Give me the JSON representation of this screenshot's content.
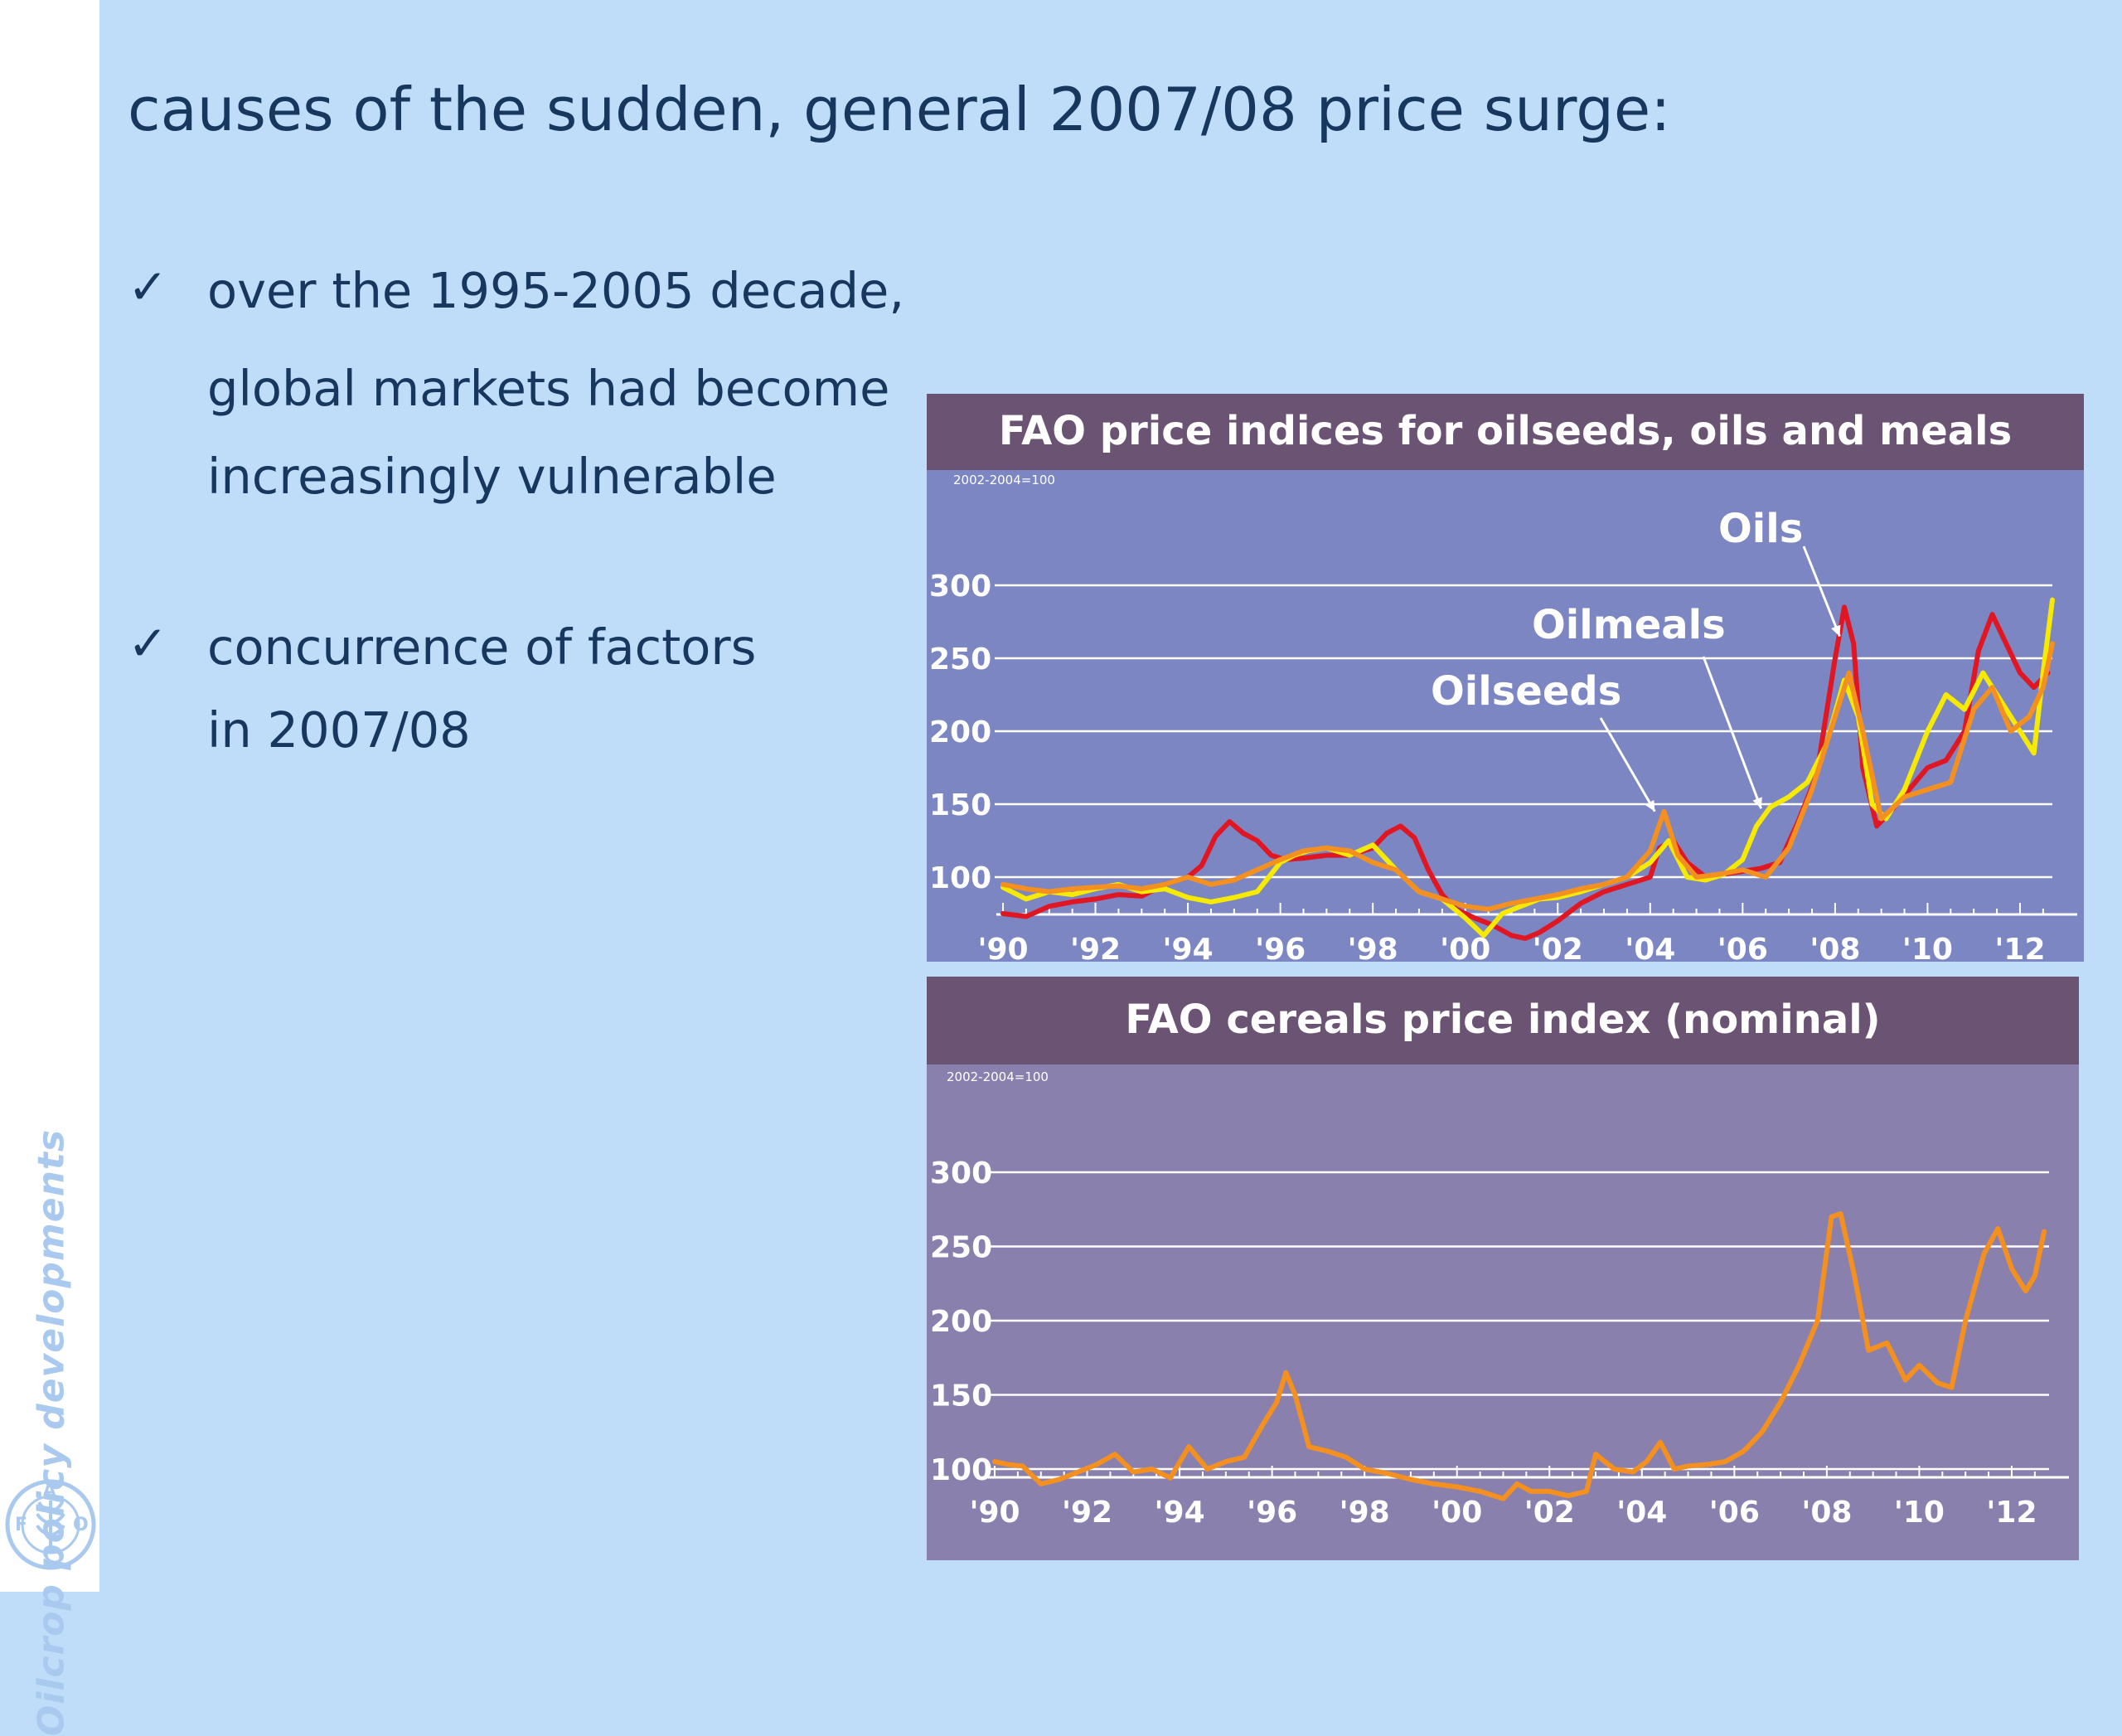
{
  "sidebar": {
    "label": "Oilcrop policy developments",
    "logo_letters": [
      "F",
      "A",
      "O"
    ]
  },
  "slide": {
    "title": "causes of the sudden, general 2007/08 price surge:",
    "bullets": [
      {
        "check": "✓",
        "lines": [
          "over the 1995-2005 decade,",
          "global markets had become",
          "increasingly vulnerable"
        ]
      },
      {
        "check": "✓",
        "lines": [
          "concurrence of factors",
          "in 2007/08"
        ]
      }
    ]
  },
  "colors": {
    "panel_header": "#6b5373",
    "panel_bg_top": "#7b86c2",
    "panel_bg_bottom": "#8a80ae",
    "oils": "#e01623",
    "oilmeals": "#f5ea00",
    "oilseeds": "#f39020",
    "cereals": "#f39020",
    "grid": "#ffffff"
  },
  "chart_data": [
    {
      "type": "line",
      "title": "FAO price indices for oilseeds, oils and meals",
      "subtitle": "2002-2004=100",
      "xlabel": "",
      "ylabel": "",
      "x_ticks": [
        "'90",
        "'92",
        "'94",
        "'96",
        "'98",
        "'00",
        "'02",
        "'04",
        "'06",
        "'08",
        "'10",
        "'12"
      ],
      "x_tick_values": [
        1990,
        1992,
        1994,
        1996,
        1998,
        2000,
        2002,
        2004,
        2006,
        2008,
        2010,
        2012
      ],
      "y_ticks": [
        100,
        150,
        200,
        250,
        300
      ],
      "xlim": [
        1990,
        2012.7
      ],
      "ylim": [
        50,
        300
      ],
      "grid": true,
      "annotations": [
        {
          "text": "Oils",
          "series": "Oils",
          "at": [
            2008.1,
            265
          ]
        },
        {
          "text": "Oilmeals",
          "series": "Oilmeals",
          "at": [
            2006.4,
            147
          ]
        },
        {
          "text": "Oilseeds",
          "series": "Oilseeds",
          "at": [
            2004.1,
            145
          ]
        }
      ],
      "series": [
        {
          "name": "Oils",
          "color": "#e01623",
          "x": [
            1990,
            1990.5,
            1991,
            1991.5,
            1992,
            1992.5,
            1993,
            1993.5,
            1994,
            1994.3,
            1994.6,
            1994.9,
            1995.2,
            1995.5,
            1995.8,
            1996.1,
            1996.5,
            1997,
            1997.5,
            1998,
            1998.3,
            1998.6,
            1998.9,
            1999.2,
            1999.5,
            1999.8,
            2000.2,
            2000.6,
            2001,
            2001.3,
            2001.6,
            2002,
            2002.5,
            2003,
            2003.5,
            2004,
            2004.2,
            2004.5,
            2004.8,
            2005.2,
            2005.6,
            2006,
            2006.4,
            2006.8,
            2007.2,
            2007.6,
            2008,
            2008.2,
            2008.4,
            2008.6,
            2008.9,
            2009.2,
            2009.6,
            2010,
            2010.4,
            2010.8,
            2011.1,
            2011.4,
            2011.7,
            2012,
            2012.3,
            2012.6
          ],
          "y": [
            75,
            73,
            80,
            83,
            85,
            88,
            87,
            95,
            100,
            108,
            128,
            138,
            130,
            125,
            115,
            112,
            113,
            115,
            115,
            120,
            130,
            135,
            127,
            105,
            88,
            78,
            72,
            67,
            60,
            58,
            62,
            70,
            82,
            90,
            95,
            100,
            120,
            125,
            110,
            100,
            102,
            104,
            106,
            110,
            138,
            170,
            250,
            285,
            260,
            175,
            135,
            145,
            160,
            175,
            180,
            200,
            255,
            280,
            260,
            240,
            230,
            240
          ]
        },
        {
          "name": "Oilmeals",
          "color": "#f5ea00",
          "x": [
            1990,
            1990.5,
            1991,
            1991.5,
            1992,
            1992.5,
            1993,
            1993.5,
            1994,
            1994.5,
            1995,
            1995.5,
            1996,
            1996.3,
            1996.6,
            1997,
            1997.5,
            1998,
            1998.5,
            1999,
            1999.5,
            2000,
            2000.4,
            2000.8,
            2001.2,
            2001.6,
            2002,
            2002.5,
            2003,
            2003.5,
            2004,
            2004.4,
            2004.8,
            2005.2,
            2005.6,
            2006,
            2006.3,
            2006.6,
            2007,
            2007.4,
            2007.8,
            2008.2,
            2008.5,
            2008.8,
            2009.1,
            2009.5,
            2010,
            2010.4,
            2010.8,
            2011.2,
            2011.6,
            2012,
            2012.3,
            2012.5,
            2012.7
          ],
          "y": [
            93,
            85,
            90,
            88,
            92,
            95,
            90,
            92,
            86,
            83,
            86,
            90,
            110,
            115,
            118,
            120,
            115,
            122,
            105,
            90,
            85,
            72,
            60,
            75,
            80,
            85,
            86,
            90,
            95,
            100,
            110,
            125,
            100,
            98,
            102,
            112,
            135,
            148,
            155,
            165,
            190,
            235,
            210,
            150,
            140,
            160,
            200,
            225,
            215,
            240,
            220,
            200,
            185,
            240,
            290
          ]
        },
        {
          "name": "Oilseeds",
          "color": "#f39020",
          "x": [
            1990,
            1990.5,
            1991,
            1991.5,
            1992,
            1992.5,
            1993,
            1993.5,
            1994,
            1994.5,
            1995,
            1995.5,
            1996,
            1996.5,
            1997,
            1997.5,
            1998,
            1998.5,
            1999,
            1999.5,
            2000,
            2000.5,
            2001,
            2001.5,
            2002,
            2002.5,
            2003,
            2003.5,
            2004,
            2004.3,
            2004.6,
            2005,
            2005.5,
            2006,
            2006.5,
            2007,
            2007.5,
            2008,
            2008.3,
            2008.6,
            2009,
            2009.5,
            2010,
            2010.5,
            2011,
            2011.4,
            2011.8,
            2012.2,
            2012.5,
            2012.7
          ],
          "y": [
            95,
            92,
            90,
            92,
            93,
            94,
            92,
            95,
            100,
            95,
            98,
            105,
            112,
            118,
            120,
            118,
            110,
            105,
            90,
            85,
            80,
            78,
            82,
            85,
            88,
            92,
            95,
            100,
            118,
            145,
            115,
            100,
            102,
            105,
            100,
            120,
            160,
            210,
            240,
            200,
            140,
            155,
            160,
            165,
            215,
            230,
            200,
            210,
            230,
            260
          ]
        }
      ]
    },
    {
      "type": "line",
      "title": "FAO cereals price index (nominal)",
      "subtitle": "2002-2004=100",
      "xlabel": "",
      "ylabel": "",
      "x_ticks": [
        "'90",
        "'92",
        "'94",
        "'96",
        "'98",
        "'00",
        "'02",
        "'04",
        "'06",
        "'08",
        "'10",
        "'12"
      ],
      "x_tick_values": [
        1990,
        1992,
        1994,
        1996,
        1998,
        2000,
        2002,
        2004,
        2006,
        2008,
        2010,
        2012
      ],
      "y_ticks": [
        100,
        150,
        200,
        250,
        300
      ],
      "xlim": [
        1990,
        2012.7
      ],
      "ylim": [
        50,
        300
      ],
      "grid": true,
      "series": [
        {
          "name": "",
          "color": "#f39020",
          "x": [
            1990,
            1990.3,
            1990.6,
            1991,
            1991.4,
            1991.8,
            1992.2,
            1992.6,
            1993,
            1993.4,
            1993.8,
            1994.2,
            1994.6,
            1995,
            1995.4,
            1995.8,
            1996.1,
            1996.3,
            1996.5,
            1996.8,
            1997.2,
            1997.6,
            1998,
            1998.5,
            1999,
            1999.5,
            2000,
            2000.5,
            2001,
            2001.3,
            2001.6,
            2002,
            2002.4,
            2002.8,
            2003,
            2003.4,
            2003.8,
            2004.1,
            2004.4,
            2004.7,
            2005,
            2005.4,
            2005.8,
            2006.2,
            2006.6,
            2007,
            2007.4,
            2007.8,
            2008.1,
            2008.3,
            2008.6,
            2008.9,
            2009.3,
            2009.7,
            2010,
            2010.4,
            2010.7,
            2011,
            2011.4,
            2011.7,
            2012,
            2012.3,
            2012.5,
            2012.7
          ],
          "y": [
            105,
            103,
            102,
            90,
            93,
            98,
            103,
            110,
            98,
            100,
            94,
            115,
            100,
            105,
            108,
            130,
            145,
            165,
            150,
            115,
            112,
            108,
            100,
            97,
            93,
            90,
            88,
            85,
            80,
            90,
            85,
            85,
            82,
            85,
            110,
            100,
            98,
            105,
            118,
            100,
            102,
            103,
            105,
            112,
            125,
            145,
            170,
            200,
            270,
            272,
            230,
            180,
            185,
            160,
            170,
            158,
            155,
            200,
            245,
            262,
            235,
            220,
            230,
            260
          ]
        }
      ]
    }
  ]
}
